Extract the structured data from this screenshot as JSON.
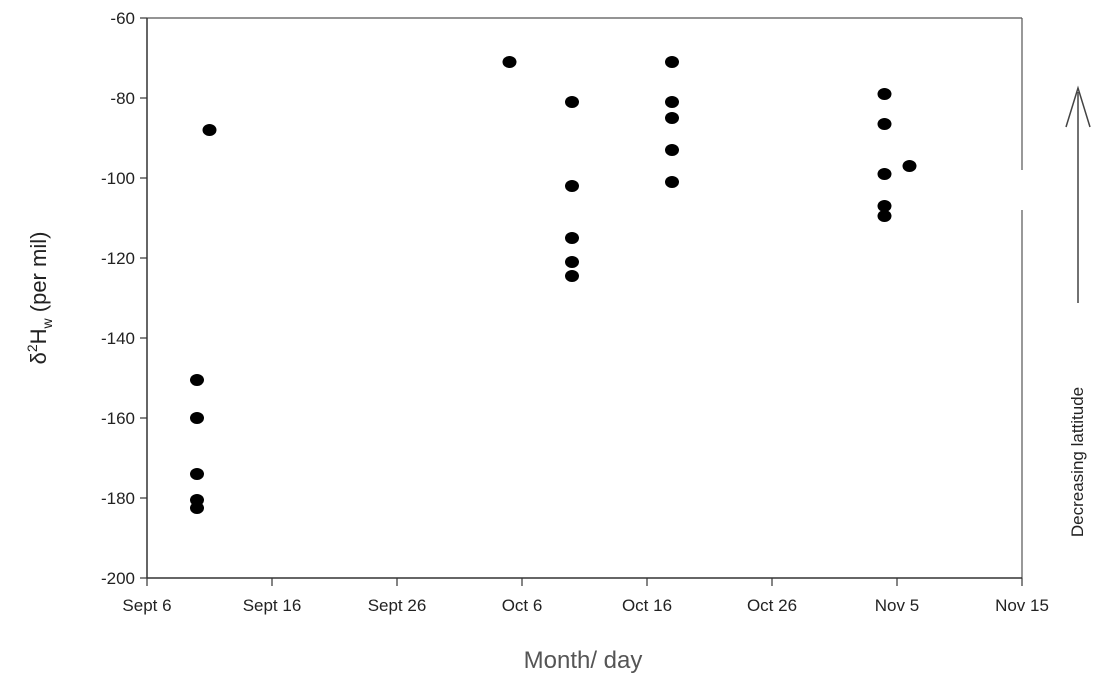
{
  "chart_data": {
    "type": "scatter",
    "xlabel": "Month/ day",
    "ylabel": {
      "delta": "δ",
      "sup": "2",
      "base": "H",
      "sub": "w",
      "unit": " (per mil)"
    },
    "x_ticks": [
      {
        "date": "2013-09-06",
        "label": "Sept 6"
      },
      {
        "date": "2013-09-16",
        "label": "Sept 16"
      },
      {
        "date": "2013-09-26",
        "label": "Sept 26"
      },
      {
        "date": "2013-10-06",
        "label": "Oct 6"
      },
      {
        "date": "2013-10-16",
        "label": "Oct 16"
      },
      {
        "date": "2013-10-26",
        "label": "Oct 26"
      },
      {
        "date": "2013-11-05",
        "label": "Nov 5"
      },
      {
        "date": "2013-11-15",
        "label": "Nov 15"
      }
    ],
    "xlim": [
      "2013-09-06",
      "2013-11-15"
    ],
    "ylim": [
      -200,
      -60
    ],
    "y_ticks": [
      -60,
      -80,
      -100,
      -120,
      -140,
      -160,
      -180,
      -200
    ],
    "grid": false,
    "side_annotation": "Decreasing lattitude",
    "side_arrow_direction": "up",
    "points": [
      {
        "x": "2013-09-10",
        "y": -150.5
      },
      {
        "x": "2013-09-10",
        "y": -160
      },
      {
        "x": "2013-09-10",
        "y": -174
      },
      {
        "x": "2013-09-10",
        "y": -180.5
      },
      {
        "x": "2013-09-10",
        "y": -182.5
      },
      {
        "x": "2013-09-11",
        "y": -88
      },
      {
        "x": "2013-10-05",
        "y": -71
      },
      {
        "x": "2013-10-10",
        "y": -81
      },
      {
        "x": "2013-10-10",
        "y": -102
      },
      {
        "x": "2013-10-10",
        "y": -115
      },
      {
        "x": "2013-10-10",
        "y": -121
      },
      {
        "x": "2013-10-10",
        "y": -124.5
      },
      {
        "x": "2013-10-18",
        "y": -71
      },
      {
        "x": "2013-10-18",
        "y": -81
      },
      {
        "x": "2013-10-18",
        "y": -85
      },
      {
        "x": "2013-10-18",
        "y": -93
      },
      {
        "x": "2013-10-18",
        "y": -101
      },
      {
        "x": "2013-11-04",
        "y": -79
      },
      {
        "x": "2013-11-04",
        "y": -86.5
      },
      {
        "x": "2013-11-04",
        "y": -99
      },
      {
        "x": "2013-11-04",
        "y": -107
      },
      {
        "x": "2013-11-04",
        "y": -109.5
      },
      {
        "x": "2013-11-06",
        "y": -97
      }
    ]
  }
}
